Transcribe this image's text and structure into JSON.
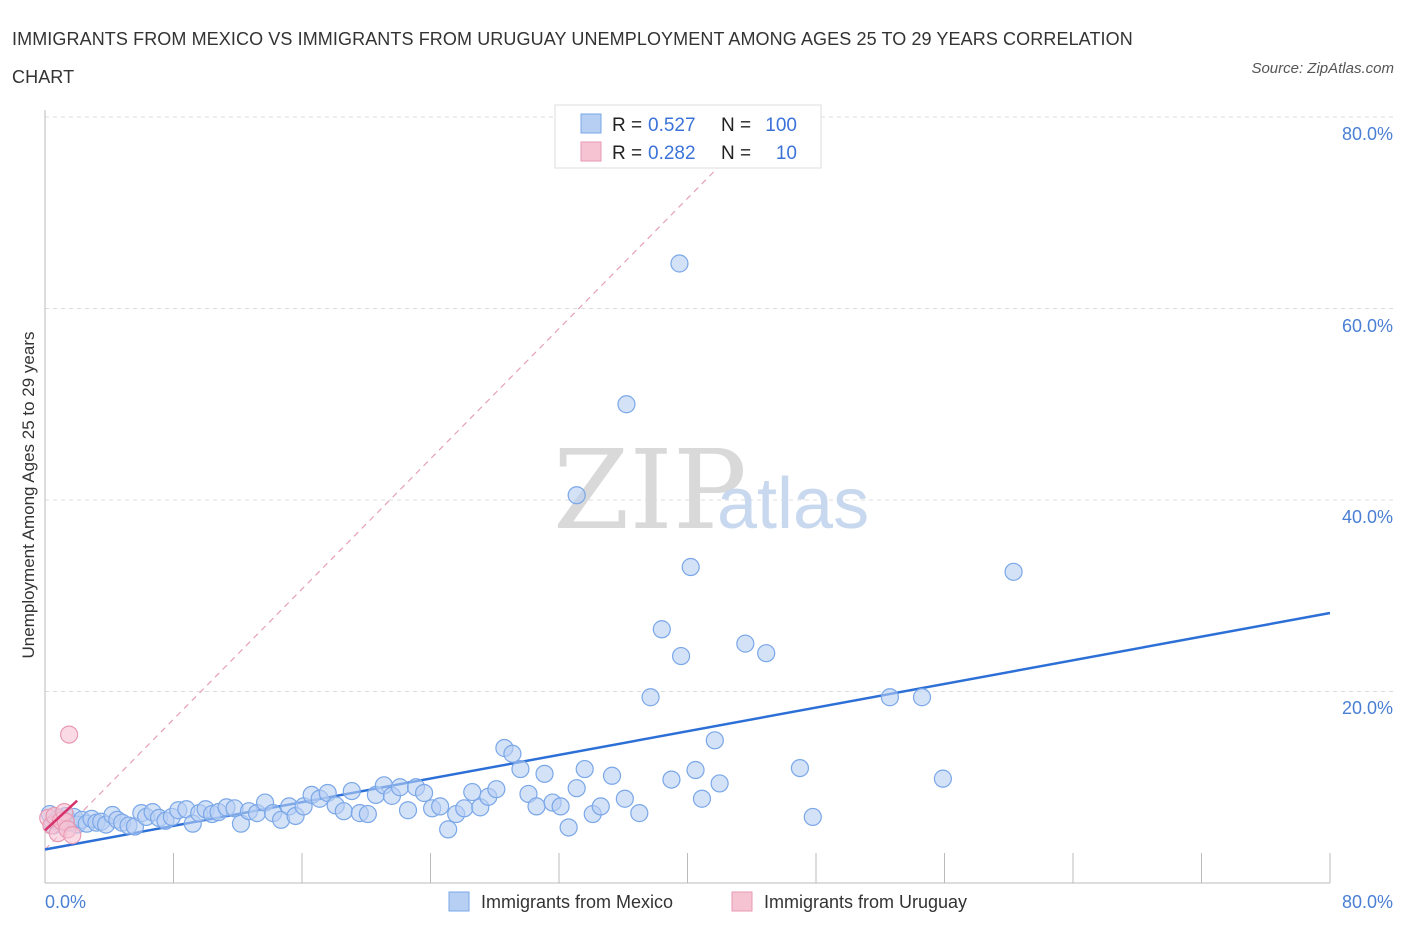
{
  "header": {
    "title": "IMMIGRANTS FROM MEXICO VS IMMIGRANTS FROM URUGUAY UNEMPLOYMENT AMONG AGES 25 TO 29 YEARS CORRELATION CHART",
    "source": "Source: ZipAtlas.com"
  },
  "watermark": {
    "zip": "ZIP",
    "atlas": "atlas"
  },
  "stats": {
    "mexico": {
      "r_label": "R =",
      "r_value": "0.527",
      "n_label": "N =",
      "n_value": "100"
    },
    "uruguay": {
      "r_label": "R =",
      "r_value": "0.282",
      "n_label": "N =",
      "n_value": "10"
    }
  },
  "chart_data": {
    "type": "scatter",
    "title": "IMMIGRANTS FROM MEXICO VS IMMIGRANTS FROM URUGUAY UNEMPLOYMENT AMONG AGES 25 TO 29 YEARS CORRELATION CHART",
    "xlabel": "",
    "ylabel": "Unemployment Among Ages 25 to 29 years",
    "xlim": [
      0,
      80
    ],
    "ylim": [
      0,
      80
    ],
    "x_tick_labels": [
      "0.0%",
      "80.0%"
    ],
    "y_ticks": [
      {
        "value": 20,
        "label": "20.0%"
      },
      {
        "value": 40,
        "label": "40.0%"
      },
      {
        "value": 60,
        "label": "60.0%"
      },
      {
        "value": 80,
        "label": "80.0%"
      }
    ],
    "legend": [
      "Immigrants from Mexico",
      "Immigrants from Uruguay"
    ],
    "series": [
      {
        "name": "Immigrants from Mexico",
        "color": "#7aa7e8",
        "fill": "#b7cff3",
        "r": 0.527,
        "n": 100,
        "trend": {
          "x": [
            0,
            80
          ],
          "y": [
            3.5,
            28.2
          ],
          "color": "#2c6fd6"
        },
        "points": [
          [
            0.3,
            7.2
          ],
          [
            0.5,
            6.0
          ],
          [
            0.7,
            6.5
          ],
          [
            0.9,
            6.8
          ],
          [
            1.1,
            6.4
          ],
          [
            1.3,
            7.0
          ],
          [
            1.5,
            6.3
          ],
          [
            1.8,
            6.9
          ],
          [
            2.0,
            6.1
          ],
          [
            2.3,
            6.6
          ],
          [
            2.6,
            6.2
          ],
          [
            2.9,
            6.7
          ],
          [
            3.2,
            6.3
          ],
          [
            3.5,
            6.4
          ],
          [
            3.8,
            6.1
          ],
          [
            4.2,
            7.1
          ],
          [
            4.5,
            6.6
          ],
          [
            4.8,
            6.3
          ],
          [
            5.2,
            6.0
          ],
          [
            5.6,
            5.9
          ],
          [
            6.0,
            7.3
          ],
          [
            6.3,
            6.9
          ],
          [
            6.7,
            7.4
          ],
          [
            7.1,
            6.8
          ],
          [
            7.5,
            6.5
          ],
          [
            7.9,
            6.9
          ],
          [
            8.3,
            7.6
          ],
          [
            8.8,
            7.7
          ],
          [
            9.2,
            6.2
          ],
          [
            9.6,
            7.3
          ],
          [
            10.0,
            7.7
          ],
          [
            10.4,
            7.2
          ],
          [
            10.8,
            7.4
          ],
          [
            11.3,
            7.9
          ],
          [
            11.8,
            7.8
          ],
          [
            12.2,
            6.2
          ],
          [
            12.7,
            7.5
          ],
          [
            13.2,
            7.3
          ],
          [
            13.7,
            8.4
          ],
          [
            14.2,
            7.3
          ],
          [
            14.7,
            6.6
          ],
          [
            15.2,
            8.0
          ],
          [
            15.6,
            7.0
          ],
          [
            16.1,
            8.0
          ],
          [
            16.6,
            9.2
          ],
          [
            17.1,
            8.8
          ],
          [
            17.6,
            9.4
          ],
          [
            18.1,
            8.1
          ],
          [
            18.6,
            7.5
          ],
          [
            19.1,
            9.6
          ],
          [
            19.6,
            7.3
          ],
          [
            20.1,
            7.2
          ],
          [
            20.6,
            9.2
          ],
          [
            21.1,
            10.2
          ],
          [
            21.6,
            9.1
          ],
          [
            22.1,
            10.0
          ],
          [
            22.6,
            7.6
          ],
          [
            23.1,
            10.0
          ],
          [
            23.6,
            9.4
          ],
          [
            24.1,
            7.8
          ],
          [
            24.6,
            8.0
          ],
          [
            25.1,
            5.6
          ],
          [
            25.6,
            7.2
          ],
          [
            26.1,
            7.8
          ],
          [
            26.6,
            9.5
          ],
          [
            27.1,
            7.9
          ],
          [
            27.6,
            9.0
          ],
          [
            28.1,
            9.8
          ],
          [
            28.6,
            14.1
          ],
          [
            29.1,
            13.5
          ],
          [
            29.6,
            11.9
          ],
          [
            30.1,
            9.3
          ],
          [
            30.6,
            8.0
          ],
          [
            31.1,
            11.4
          ],
          [
            31.6,
            8.4
          ],
          [
            32.1,
            8.0
          ],
          [
            32.6,
            5.8
          ],
          [
            33.1,
            9.9
          ],
          [
            33.6,
            11.9
          ],
          [
            34.1,
            7.2
          ],
          [
            34.6,
            8.0
          ],
          [
            35.3,
            11.2
          ],
          [
            36.1,
            8.8
          ],
          [
            37.0,
            7.3
          ],
          [
            37.7,
            19.4
          ],
          [
            38.4,
            26.5
          ],
          [
            39.0,
            10.8
          ],
          [
            39.6,
            23.7
          ],
          [
            40.5,
            11.8
          ],
          [
            40.9,
            8.8
          ],
          [
            41.7,
            14.9
          ],
          [
            42.0,
            10.4
          ],
          [
            43.6,
            25.0
          ],
          [
            44.9,
            24.0
          ],
          [
            47.0,
            12.0
          ],
          [
            47.8,
            6.9
          ],
          [
            52.6,
            19.4
          ],
          [
            54.6,
            19.4
          ],
          [
            55.9,
            10.9
          ],
          [
            60.3,
            32.5
          ]
        ],
        "outliers": [
          [
            40.2,
            33.0
          ],
          [
            39.5,
            64.7
          ],
          [
            36.2,
            50.0
          ],
          [
            33.1,
            40.5
          ]
        ]
      },
      {
        "name": "Immigrants from Uruguay",
        "color": "#e89ab3",
        "fill": "#f6c3d3",
        "r": 0.282,
        "n": 10,
        "trend": {
          "x": [
            0,
            2.0
          ],
          "y": [
            5.5,
            8.6
          ],
          "color": "#d6336c"
        },
        "diagonal": {
          "x": [
            0,
            45
          ],
          "y": [
            3.5,
            80
          ],
          "color": "#e5a0b5"
        },
        "points": [
          [
            0.2,
            6.8
          ],
          [
            0.4,
            6.0
          ],
          [
            0.6,
            7.0
          ],
          [
            0.8,
            5.2
          ],
          [
            1.0,
            6.5
          ],
          [
            1.2,
            7.4
          ],
          [
            1.3,
            6.4
          ],
          [
            1.4,
            5.6
          ],
          [
            1.5,
            15.5
          ],
          [
            1.7,
            5.0
          ]
        ]
      }
    ]
  }
}
